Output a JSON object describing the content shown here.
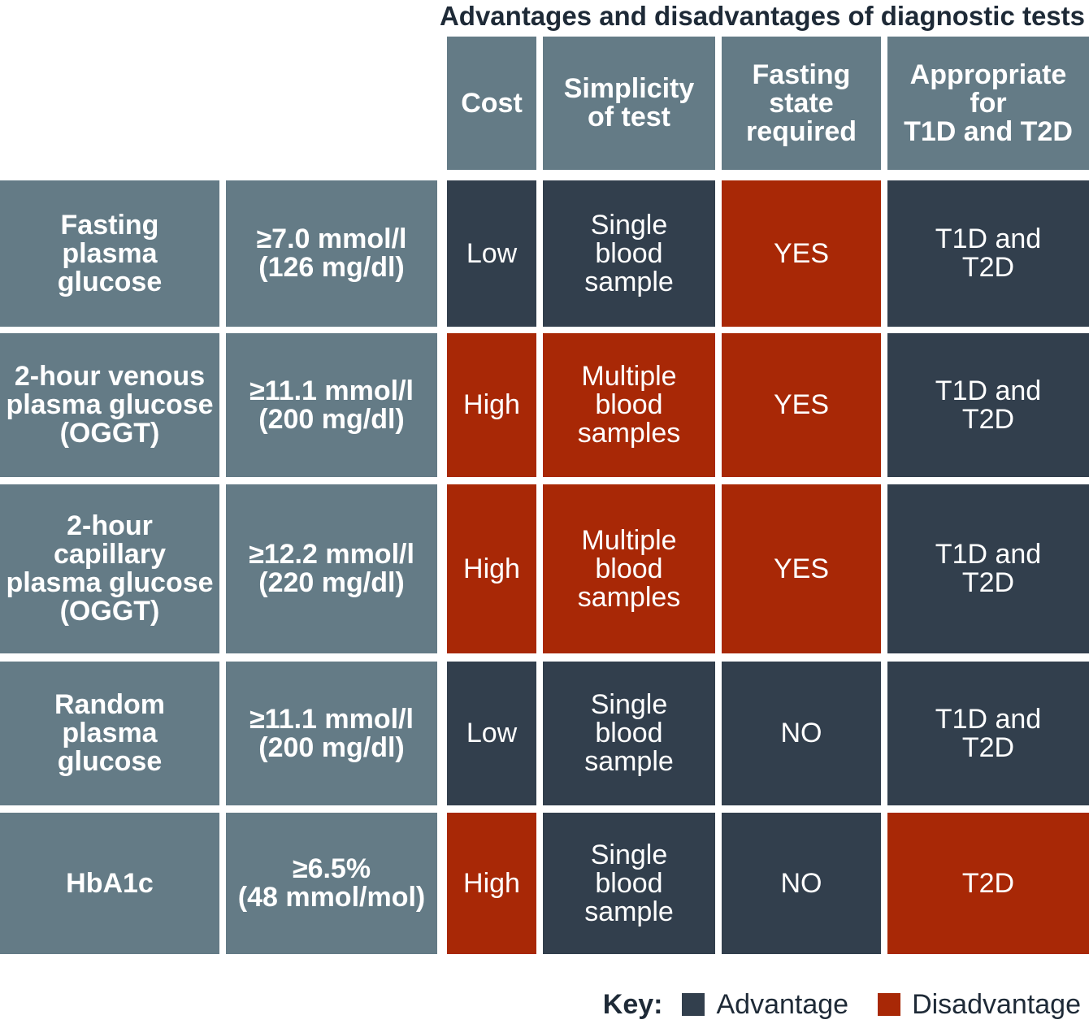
{
  "title": "Advantages and disadvantages of diagnostic tests",
  "columns": [
    "Cost",
    "Simplicity\nof test",
    "Fasting\nstate\nrequired",
    "Appropriate\nfor\nT1D and T2D"
  ],
  "rows": [
    {
      "test": "Fasting\nplasma\nglucose",
      "threshold": "≥7.0 mmol/l\n(126 mg/dl)",
      "cells": [
        {
          "text": "Low",
          "status": "advantage"
        },
        {
          "text": "Single\nblood\nsample",
          "status": "advantage"
        },
        {
          "text": "YES",
          "status": "disadvantage"
        },
        {
          "text": "T1D and\nT2D",
          "status": "advantage"
        }
      ]
    },
    {
      "test": "2-hour venous\nplasma glucose\n(OGGT)",
      "threshold": "≥11.1 mmol/l\n(200 mg/dl)",
      "cells": [
        {
          "text": "High",
          "status": "disadvantage"
        },
        {
          "text": "Multiple\nblood\nsamples",
          "status": "disadvantage"
        },
        {
          "text": "YES",
          "status": "disadvantage"
        },
        {
          "text": "T1D and\nT2D",
          "status": "advantage"
        }
      ]
    },
    {
      "test": "2-hour\ncapillary\nplasma glucose\n(OGGT)",
      "threshold": "≥12.2 mmol/l\n(220 mg/dl)",
      "cells": [
        {
          "text": "High",
          "status": "disadvantage"
        },
        {
          "text": "Multiple\nblood\nsamples",
          "status": "disadvantage"
        },
        {
          "text": "YES",
          "status": "disadvantage"
        },
        {
          "text": "T1D and\nT2D",
          "status": "advantage"
        }
      ]
    },
    {
      "test": "Random\nplasma\nglucose",
      "threshold": "≥11.1 mmol/l\n(200 mg/dl)",
      "cells": [
        {
          "text": "Low",
          "status": "advantage"
        },
        {
          "text": "Single\nblood\nsample",
          "status": "advantage"
        },
        {
          "text": "NO",
          "status": "advantage"
        },
        {
          "text": "T1D and\nT2D",
          "status": "advantage"
        }
      ]
    },
    {
      "test": "HbA1c",
      "threshold": "≥6.5%\n(48 mmol/mol)",
      "cells": [
        {
          "text": "High",
          "status": "disadvantage"
        },
        {
          "text": "Single\nblood\nsample",
          "status": "advantage"
        },
        {
          "text": "NO",
          "status": "advantage"
        },
        {
          "text": "T2D",
          "status": "disadvantage"
        }
      ]
    }
  ],
  "key": {
    "label": "Key:",
    "advantage": "Advantage",
    "disadvantage": "Disadvantage"
  },
  "colors": {
    "header": "#647b86",
    "advantage": "#323f4d",
    "disadvantage": "#a82806",
    "title": "#1e2a37"
  }
}
